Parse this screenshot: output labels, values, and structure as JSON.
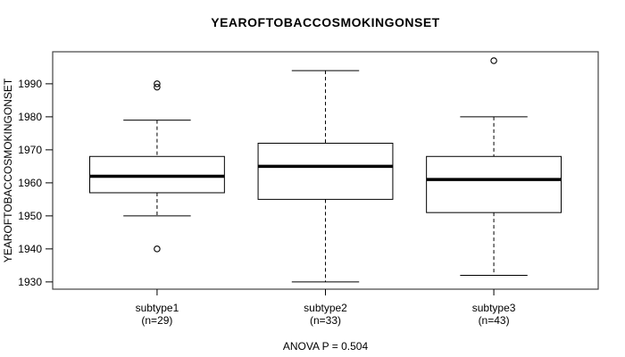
{
  "chart_data": {
    "type": "boxplot",
    "title": "YEAROFTOBACCOSMOKINGONSET",
    "ylabel": "YEAROFTOBACCOSMOKINGONSET",
    "footer": "ANOVA P = 0.504",
    "categories": [
      "subtype1",
      "subtype2",
      "subtype3"
    ],
    "category_sublabels": [
      "(n=29)",
      "(n=33)",
      "(n=43)"
    ],
    "sample_sizes": [
      29,
      33,
      43
    ],
    "yticks": [
      1930,
      1940,
      1950,
      1960,
      1970,
      1980,
      1990
    ],
    "ylim": [
      1927.8,
      1999.7
    ],
    "grid": false,
    "legend": null,
    "series": [
      {
        "name": "subtype1",
        "whisker_low": 1950,
        "q1": 1957,
        "median": 1962,
        "q3": 1968,
        "whisker_high": 1979,
        "outliers": [
          1989,
          1990,
          1940
        ]
      },
      {
        "name": "subtype2",
        "whisker_low": 1930,
        "q1": 1955,
        "median": 1965,
        "q3": 1972,
        "whisker_high": 1994,
        "outliers": []
      },
      {
        "name": "subtype3",
        "whisker_low": 1932,
        "q1": 1951,
        "median": 1961,
        "q3": 1968,
        "whisker_high": 1980,
        "outliers": [
          1997
        ]
      }
    ],
    "colors": {
      "line": "#000000",
      "border": "#444444",
      "box_fill": "#ffffff",
      "background": "#ffffff",
      "text": "#000000"
    }
  }
}
